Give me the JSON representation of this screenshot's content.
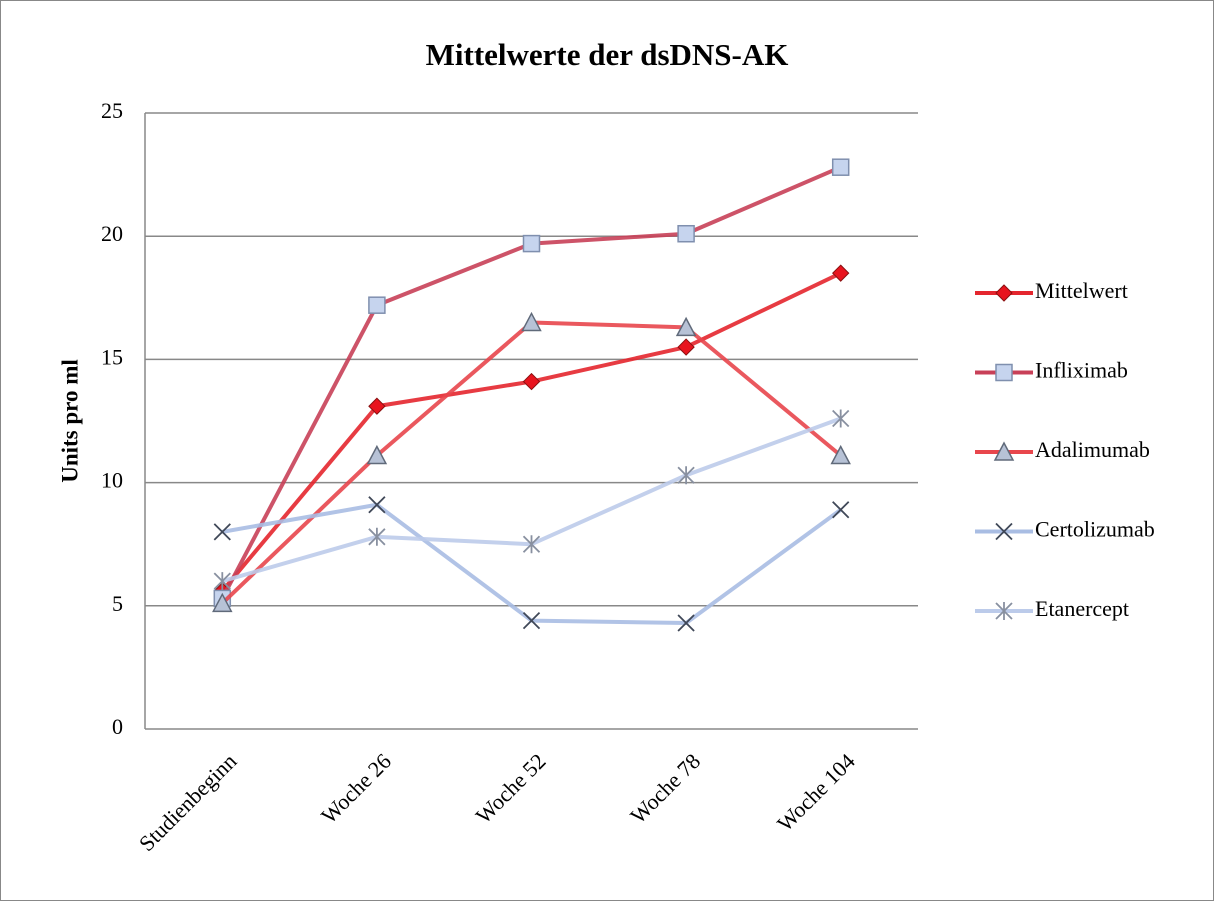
{
  "chart_data": {
    "type": "line",
    "title": "Mittelwerte der dsDNS-AK",
    "y_label": "Units pro ml",
    "categories": [
      "Studienbeginn",
      "Woche 26",
      "Woche 52",
      "Woche 78",
      "Woche 104"
    ],
    "ylim": [
      0,
      25
    ],
    "yticks": [
      0,
      5,
      10,
      15,
      20,
      25
    ],
    "grid": true,
    "legend": "right",
    "series": [
      {
        "name": "Mittelwert",
        "color": "#e4262e",
        "marker": "diamond",
        "values": [
          5.6,
          13.1,
          14.1,
          15.5,
          18.5
        ]
      },
      {
        "name": "Infliximab",
        "color": "#c84058",
        "marker": "square",
        "values": [
          5.3,
          17.2,
          19.7,
          20.1,
          22.8
        ]
      },
      {
        "name": "Adalimumab",
        "color": "#e8464c",
        "marker": "triangle",
        "values": [
          5.1,
          11.1,
          16.5,
          16.3,
          11.1
        ]
      },
      {
        "name": "Certolizumab",
        "color": "#a9bde3",
        "marker": "x",
        "values": [
          8.0,
          9.1,
          4.4,
          4.3,
          8.9
        ]
      },
      {
        "name": "Etanercept",
        "color": "#bccbea",
        "marker": "star",
        "values": [
          6.0,
          7.8,
          7.5,
          10.3,
          12.6
        ]
      }
    ]
  }
}
